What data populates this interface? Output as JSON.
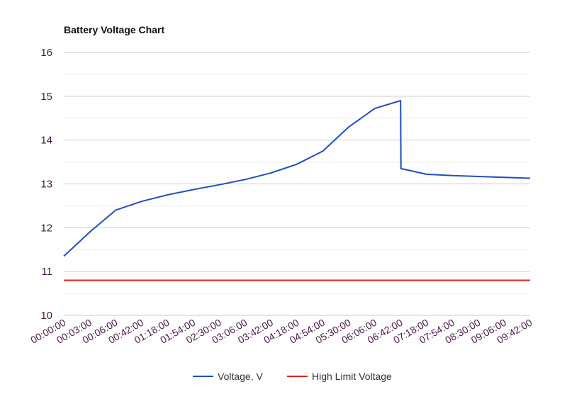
{
  "chart_data": {
    "type": "line",
    "title": "Battery Voltage Chart",
    "xlabel": "",
    "ylabel": "",
    "ylim": [
      10,
      16
    ],
    "y_ticks": [
      "10",
      "11",
      "12",
      "13",
      "14",
      "15",
      "16"
    ],
    "x_tick_labels": [
      "00:00:00",
      "00:03:00",
      "00:06:00",
      "00:42:00",
      "01:18:00",
      "01:54:00",
      "02:30:00",
      "03:06:00",
      "03:42:00",
      "04:18:00",
      "04:54:00",
      "05:30:00",
      "06:06:00",
      "06:42:00",
      "07:18:00",
      "07:54:00",
      "08:30:00",
      "09:06:00",
      "09:42:00"
    ],
    "grid": true,
    "legend_position": "bottom",
    "series": [
      {
        "name": "Voltage, V",
        "color": "#1f4fc1",
        "x": [
          "00:00:00",
          "00:03:00",
          "00:06:00",
          "00:42:00",
          "01:18:00",
          "01:54:00",
          "02:30:00",
          "03:06:00",
          "03:42:00",
          "04:18:00",
          "04:54:00",
          "05:30:00",
          "06:06:00",
          "06:42:00",
          "06:42:30",
          "07:18:00",
          "07:54:00",
          "08:30:00",
          "09:06:00",
          "09:42:00"
        ],
        "values": [
          11.35,
          11.9,
          12.4,
          12.6,
          12.75,
          12.87,
          12.98,
          13.1,
          13.25,
          13.45,
          13.75,
          14.3,
          14.72,
          14.9,
          13.35,
          13.22,
          13.19,
          13.17,
          13.15,
          13.13
        ]
      },
      {
        "name": "High Limit Voltage",
        "color": "#e02020",
        "x": [
          "00:00:00",
          "09:42:00"
        ],
        "values": [
          10.8,
          10.8
        ]
      }
    ]
  }
}
